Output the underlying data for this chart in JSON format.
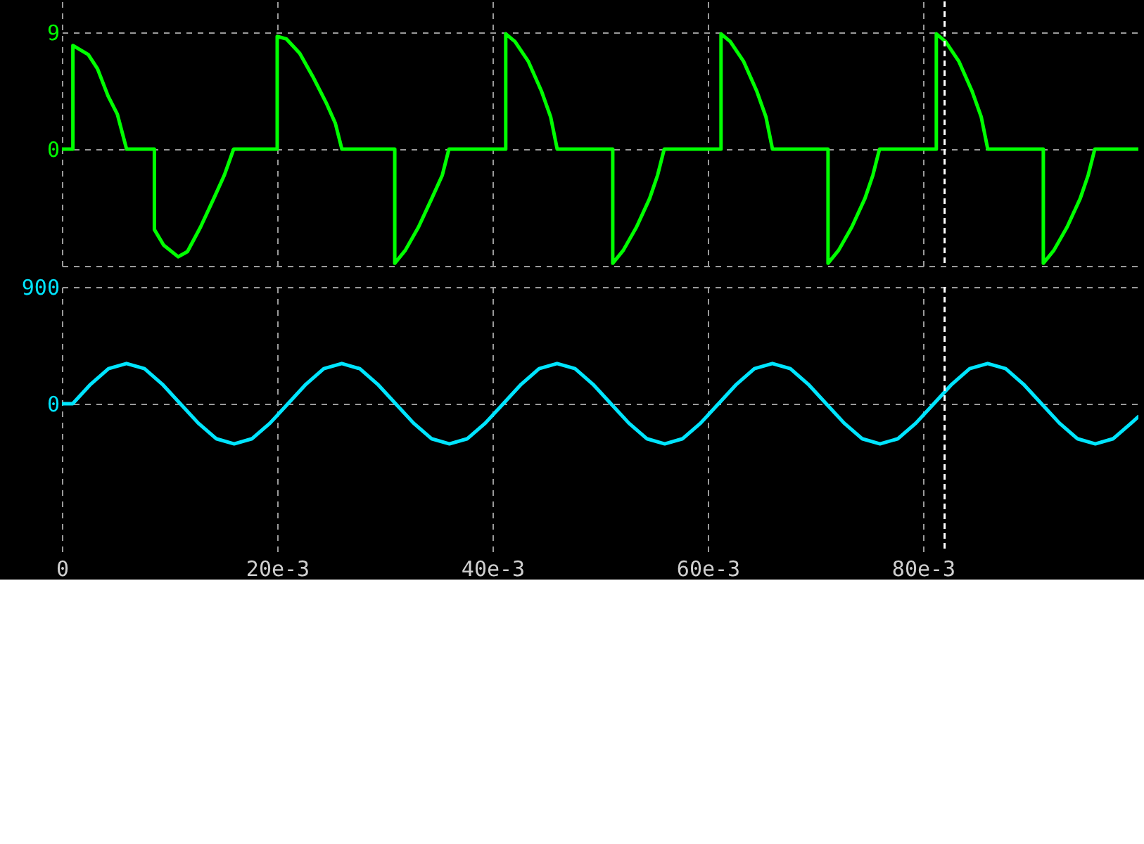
{
  "chart_data": [
    {
      "type": "line",
      "xlim": [
        0,
        0.1
      ],
      "xticks": [
        0,
        0.02,
        0.04,
        0.06,
        0.08
      ],
      "ylim": [
        -9,
        11.4
      ],
      "yticks": [
        9,
        0,
        {
          "value": -9,
          "label": null
        }
      ],
      "grid": true,
      "tick_labels": "y",
      "marker": "none",
      "ref_lines": [
        {
          "axis": "x",
          "value": 0.082,
          "color": "#ffffff",
          "line_style": "dashed"
        }
      ],
      "series": [
        {
          "color": "#00ff00",
          "x": [
            0,
            0.00102,
            0.00102,
            0.00245,
            0.00331,
            0.00429,
            0.00515,
            0.00601,
            0.00859,
            0.00859,
            0.00945,
            0.0108,
            0.01166,
            0.01288,
            0.01411,
            0.01509,
            0.01595,
            0.02,
            0.02,
            0.02086,
            0.02209,
            0.02331,
            0.02454,
            0.0254,
            0.02601,
            0.03092,
            0.03092,
            0.0319,
            0.03313,
            0.03436,
            0.03534,
            0.03595,
            0.04123,
            0.04123,
            0.04209,
            0.04331,
            0.04454,
            0.0454,
            0.04601,
            0.05117,
            0.05117,
            0.05215,
            0.05338,
            0.0546,
            0.05534,
            0.05595,
            0.06123,
            0.06123,
            0.06209,
            0.06331,
            0.06454,
            0.0654,
            0.06601,
            0.07117,
            0.07117,
            0.07215,
            0.07338,
            0.0746,
            0.07534,
            0.07595,
            0.08123,
            0.08123,
            0.08209,
            0.08331,
            0.08454,
            0.0854,
            0.08601,
            0.09117,
            0.09117,
            0.09215,
            0.09338,
            0.0946,
            0.09534,
            0.09595,
            0.1
          ],
          "values": [
            0,
            0,
            8.0,
            7.3,
            6.2,
            4.1,
            2.7,
            0,
            0,
            -6.2,
            -7.4,
            -8.3,
            -7.9,
            -6.0,
            -3.8,
            -2.0,
            0,
            0,
            8.7,
            8.5,
            7.4,
            5.6,
            3.6,
            2.0,
            0,
            0,
            -8.8,
            -7.8,
            -6.0,
            -3.8,
            -2.0,
            0,
            0,
            8.9,
            8.3,
            6.8,
            4.5,
            2.5,
            0,
            0,
            -8.8,
            -7.8,
            -6.0,
            -3.8,
            -2.0,
            0,
            0,
            8.9,
            8.3,
            6.8,
            4.5,
            2.5,
            0,
            0,
            -8.8,
            -7.8,
            -6.0,
            -3.8,
            -2.0,
            0,
            0,
            8.9,
            8.3,
            6.8,
            4.5,
            2.5,
            0,
            0,
            -8.8,
            -7.8,
            -6.0,
            -3.8,
            -2.0,
            0,
            0
          ]
        }
      ]
    },
    {
      "type": "line",
      "xlim": [
        0,
        0.1
      ],
      "xticks": [
        0,
        {
          "value": 0.02,
          "label": "20e-3"
        },
        {
          "value": 0.04,
          "label": "40e-3"
        },
        {
          "value": 0.06,
          "label": "60e-3"
        },
        {
          "value": 0.08,
          "label": "80e-3"
        }
      ],
      "ylim": [
        -1150,
        900
      ],
      "yticks": [
        900,
        0
      ],
      "grid": true,
      "marker": "none",
      "ref_lines": [
        {
          "axis": "x",
          "value": 0.082,
          "color": "#ffffff",
          "line_style": "dashed"
        }
      ],
      "series": [
        {
          "color": "#00e5ff",
          "x": [
            0,
            0.001,
            0.00267,
            0.00433,
            0.006,
            0.00767,
            0.00933,
            0.011,
            0.01267,
            0.01433,
            0.016,
            0.01767,
            0.01933,
            0.021,
            0.02267,
            0.02433,
            0.026,
            0.02767,
            0.02933,
            0.031,
            0.03267,
            0.03433,
            0.036,
            0.03767,
            0.03933,
            0.041,
            0.04267,
            0.04433,
            0.046,
            0.04767,
            0.04933,
            0.051,
            0.05267,
            0.05433,
            0.056,
            0.05767,
            0.05933,
            0.061,
            0.06267,
            0.06433,
            0.066,
            0.06767,
            0.06933,
            0.071,
            0.07267,
            0.07433,
            0.076,
            0.07767,
            0.07933,
            0.081,
            0.08267,
            0.08433,
            0.086,
            0.08767,
            0.08933,
            0.091,
            0.09267,
            0.09433,
            0.096,
            0.09767,
            0.09933,
            0.1
          ],
          "values": [
            0,
            0,
            150,
            270,
            310,
            270,
            150,
            0,
            -150,
            -270,
            -310,
            -270,
            -150,
            0,
            150,
            270,
            310,
            270,
            150,
            0,
            -150,
            -270,
            -310,
            -270,
            -150,
            0,
            150,
            270,
            310,
            270,
            150,
            0,
            -150,
            -270,
            -310,
            -270,
            -150,
            0,
            150,
            270,
            310,
            270,
            150,
            0,
            -150,
            -270,
            -310,
            -270,
            -150,
            0,
            150,
            270,
            310,
            270,
            150,
            0,
            -150,
            -270,
            -310,
            -270,
            -150,
            -100
          ]
        }
      ]
    }
  ]
}
